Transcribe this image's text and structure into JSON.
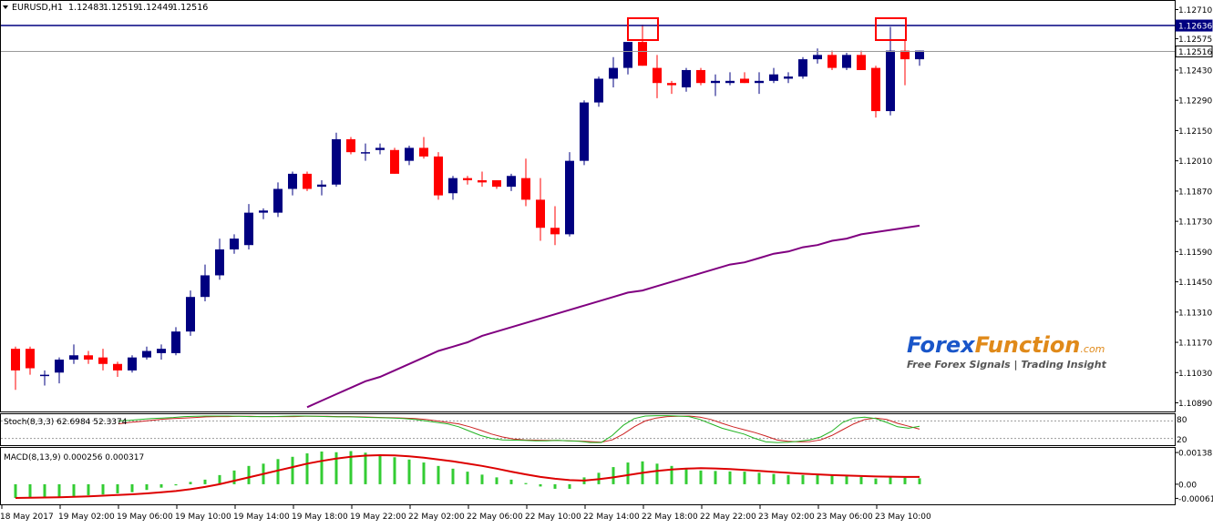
{
  "chart_data": {
    "type": "candlestick",
    "symbol_title": "EURUSD,H1",
    "ohlc_header": [
      "1.12483",
      "1.12519",
      "1.12449",
      "1.12516"
    ],
    "price_axis": {
      "ylim": [
        1.1085,
        1.1275
      ],
      "ticks": [
        "1.12710",
        "1.12575",
        "1.12430",
        "1.12290",
        "1.12150",
        "1.12010",
        "1.11870",
        "1.11730",
        "1.11590",
        "1.11450",
        "1.11310",
        "1.11170",
        "1.11030",
        "1.10890"
      ]
    },
    "horizontal_lines": [
      {
        "value": 1.12636,
        "label": "1.12636",
        "color": "#000080"
      },
      {
        "value": 1.12516,
        "label": "1.12516",
        "color": "#9a9a9a"
      }
    ],
    "candles": [
      [
        1.1114,
        1.1115,
        1.1095,
        1.1104
      ],
      [
        1.1114,
        1.1115,
        1.1102,
        1.1105
      ],
      [
        1.1102,
        1.1104,
        1.1097,
        1.1102
      ],
      [
        1.1103,
        1.111,
        1.1098,
        1.1109
      ],
      [
        1.1109,
        1.1116,
        1.1107,
        1.1111
      ],
      [
        1.1111,
        1.1113,
        1.1107,
        1.1109
      ],
      [
        1.111,
        1.1114,
        1.1104,
        1.1107
      ],
      [
        1.1107,
        1.1108,
        1.1101,
        1.1104
      ],
      [
        1.1104,
        1.1111,
        1.1103,
        1.111
      ],
      [
        1.111,
        1.1115,
        1.1109,
        1.1113
      ],
      [
        1.1112,
        1.1116,
        1.1109,
        1.1114
      ],
      [
        1.1112,
        1.1124,
        1.1111,
        1.1122
      ],
      [
        1.1122,
        1.1141,
        1.112,
        1.1138
      ],
      [
        1.1138,
        1.1153,
        1.1136,
        1.1148
      ],
      [
        1.1148,
        1.1165,
        1.1146,
        1.116
      ],
      [
        1.116,
        1.1167,
        1.1158,
        1.1165
      ],
      [
        1.1162,
        1.1181,
        1.116,
        1.1177
      ],
      [
        1.1177,
        1.1179,
        1.1174,
        1.1178
      ],
      [
        1.1177,
        1.1191,
        1.1175,
        1.1188
      ],
      [
        1.1188,
        1.1196,
        1.1185,
        1.1195
      ],
      [
        1.1195,
        1.1196,
        1.1187,
        1.1188
      ],
      [
        1.1189,
        1.1192,
        1.1185,
        1.119
      ],
      [
        1.119,
        1.1214,
        1.1189,
        1.1211
      ],
      [
        1.1211,
        1.1212,
        1.1204,
        1.1205
      ],
      [
        1.1205,
        1.1209,
        1.1201,
        1.1205
      ],
      [
        1.1206,
        1.1209,
        1.1204,
        1.1207
      ],
      [
        1.1206,
        1.1207,
        1.1195,
        1.1195
      ],
      [
        1.1201,
        1.1208,
        1.1199,
        1.1207
      ],
      [
        1.1207,
        1.1212,
        1.1202,
        1.1203
      ],
      [
        1.1203,
        1.1205,
        1.1183,
        1.1185
      ],
      [
        1.1186,
        1.1194,
        1.1183,
        1.1193
      ],
      [
        1.1193,
        1.1194,
        1.119,
        1.1192
      ],
      [
        1.1192,
        1.1196,
        1.1189,
        1.1191
      ],
      [
        1.1192,
        1.1192,
        1.1188,
        1.1189
      ],
      [
        1.1189,
        1.1195,
        1.1187,
        1.1194
      ],
      [
        1.1193,
        1.1202,
        1.118,
        1.1183
      ],
      [
        1.1183,
        1.1193,
        1.1164,
        1.117
      ],
      [
        1.117,
        1.118,
        1.1162,
        1.1167
      ],
      [
        1.1167,
        1.1205,
        1.1166,
        1.1201
      ],
      [
        1.1201,
        1.1229,
        1.1199,
        1.1228
      ],
      [
        1.1228,
        1.124,
        1.1226,
        1.1239
      ],
      [
        1.1239,
        1.1249,
        1.1235,
        1.1244
      ],
      [
        1.1244,
        1.1256,
        1.1241,
        1.1256
      ],
      [
        1.1256,
        1.1264,
        1.1245,
        1.1245
      ],
      [
        1.1244,
        1.125,
        1.123,
        1.1237
      ],
      [
        1.1237,
        1.1238,
        1.1232,
        1.1236
      ],
      [
        1.1235,
        1.1244,
        1.1233,
        1.1243
      ],
      [
        1.1243,
        1.1244,
        1.1236,
        1.1237
      ],
      [
        1.1237,
        1.1241,
        1.1231,
        1.1238
      ],
      [
        1.1237,
        1.1242,
        1.1236,
        1.1238
      ],
      [
        1.1239,
        1.1242,
        1.1237,
        1.1237
      ],
      [
        1.1237,
        1.1242,
        1.1232,
        1.1238
      ],
      [
        1.1238,
        1.1244,
        1.1237,
        1.1241
      ],
      [
        1.1239,
        1.1242,
        1.1237,
        1.124
      ],
      [
        1.124,
        1.1249,
        1.1239,
        1.1248
      ],
      [
        1.1248,
        1.1253,
        1.1246,
        1.125
      ],
      [
        1.125,
        1.1252,
        1.1243,
        1.1244
      ],
      [
        1.1244,
        1.1251,
        1.1243,
        1.125
      ],
      [
        1.125,
        1.1252,
        1.1243,
        1.1243
      ],
      [
        1.1244,
        1.1245,
        1.1221,
        1.1224
      ],
      [
        1.1224,
        1.1263,
        1.1222,
        1.1252
      ],
      [
        1.1252,
        1.1257,
        1.1236,
        1.1248
      ],
      [
        1.1248,
        1.1252,
        1.1245,
        1.1252
      ]
    ],
    "moving_average": [
      1.1087,
      1.109,
      1.1093,
      1.1096,
      1.1099,
      1.1101,
      1.1104,
      1.1107,
      1.111,
      1.1113,
      1.1115,
      1.1117,
      1.112,
      1.1122,
      1.1124,
      1.1126,
      1.1128,
      1.113,
      1.1132,
      1.1134,
      1.1136,
      1.1138,
      1.114,
      1.1141,
      1.1143,
      1.1145,
      1.1147,
      1.1149,
      1.1151,
      1.1153,
      1.1154,
      1.1156,
      1.1158,
      1.1159,
      1.1161,
      1.1162,
      1.1164,
      1.1165,
      1.1167,
      1.1168,
      1.1169,
      1.117,
      1.1171
    ],
    "highlight_candles": [
      43,
      60
    ],
    "stochastic": {
      "label": "Stoch(8,3,3) 62.6984 52.3374",
      "levels": [
        "80",
        "20"
      ],
      "main": [
        80,
        82,
        85,
        88,
        90,
        92,
        95,
        96,
        97,
        97,
        97,
        96,
        95,
        95,
        95,
        96,
        97,
        97,
        96,
        95,
        94,
        94,
        93,
        92,
        91,
        90,
        88,
        85,
        80,
        75,
        70,
        60,
        45,
        30,
        20,
        15,
        14,
        13,
        12,
        12,
        13,
        12,
        10,
        6,
        6,
        30,
        65,
        88,
        97,
        98,
        98,
        97,
        95,
        85,
        70,
        55,
        45,
        35,
        20,
        8,
        6,
        7,
        10,
        15,
        25,
        45,
        75,
        90,
        93,
        88,
        75,
        60,
        55,
        62
      ],
      "signal": [
        70,
        75,
        78,
        82,
        86,
        88,
        90,
        92,
        94,
        95,
        95,
        96,
        96,
        95,
        95,
        95,
        95,
        96,
        96,
        96,
        95,
        95,
        94,
        93,
        92,
        91,
        90,
        88,
        85,
        80,
        75,
        70,
        60,
        48,
        35,
        25,
        18,
        15,
        14,
        13,
        13,
        12,
        11,
        9,
        7,
        15,
        35,
        60,
        80,
        90,
        95,
        96,
        97,
        93,
        85,
        72,
        60,
        50,
        40,
        28,
        15,
        10,
        8,
        9,
        15,
        30,
        50,
        70,
        85,
        90,
        85,
        72,
        62,
        52
      ]
    },
    "macd": {
      "label": "MACD(8,13,9) 0.000256 0.000317",
      "ticks": [
        "0.001387",
        "0.00",
        "-0.000618"
      ],
      "ylim": [
        -0.00088,
        0.00155
      ],
      "histogram": [
        -0.0006,
        -0.0006,
        -0.00058,
        -0.00055,
        -0.00052,
        -0.00048,
        -0.00045,
        -0.0004,
        -0.00035,
        -0.00025,
        -0.00015,
        -5e-05,
        0.0001,
        0.0002,
        0.0004,
        0.0006,
        0.0008,
        0.0009,
        0.0011,
        0.0012,
        0.00135,
        0.00143,
        0.0014,
        0.00145,
        0.00138,
        0.00128,
        0.00118,
        0.00108,
        0.00095,
        0.0008,
        0.00068,
        0.00055,
        0.00042,
        0.0003,
        0.0002,
        5e-05,
        -0.0001,
        -0.0002,
        -0.0002,
        0.0003,
        0.0005,
        0.00075,
        0.00095,
        0.001,
        0.0009,
        0.0008,
        0.0007,
        0.0006,
        0.00058,
        0.00056,
        0.00055,
        0.0005,
        0.00045,
        0.0004,
        0.0004,
        0.0004,
        0.00038,
        0.00035,
        0.00032,
        0.00025,
        0.0003,
        0.00028,
        0.00026
      ],
      "signal": [
        -0.0006,
        -0.00059,
        -0.00058,
        -0.00057,
        -0.00055,
        -0.00053,
        -0.0005,
        -0.00047,
        -0.00044,
        -0.0004,
        -0.00035,
        -0.0003,
        -0.00022,
        -0.00012,
        0.0,
        0.00015,
        0.0003,
        0.00045,
        0.0006,
        0.00075,
        0.0009,
        0.00102,
        0.00112,
        0.0012,
        0.00125,
        0.00127,
        0.00126,
        0.00122,
        0.00116,
        0.00108,
        0.001,
        0.0009,
        0.0008,
        0.00068,
        0.00055,
        0.00043,
        0.00032,
        0.00024,
        0.00018,
        0.00016,
        0.00022,
        0.0003,
        0.0004,
        0.0005,
        0.00058,
        0.00064,
        0.00068,
        0.0007,
        0.00069,
        0.00066,
        0.00062,
        0.00058,
        0.00054,
        0.0005,
        0.00046,
        0.00043,
        0.0004,
        0.00038,
        0.00036,
        0.00034,
        0.00033,
        0.00032,
        0.00032
      ]
    },
    "time_labels": [
      "18 May 2017",
      "19 May 02:00",
      "19 May 06:00",
      "19 May 10:00",
      "19 May 14:00",
      "19 May 18:00",
      "19 May 22:00",
      "22 May 02:00",
      "22 May 06:00",
      "22 May 10:00",
      "22 May 14:00",
      "22 May 18:00",
      "22 May 22:00",
      "23 May 02:00",
      "23 May 06:00",
      "23 May 10:00"
    ],
    "watermark": {
      "brand_part1": "Forex",
      "brand_part2": "Function",
      "domain_suffix": ".com",
      "tagline": "Free Forex Signals | Trading Insight"
    },
    "colors": {
      "bull": "#000080",
      "bear": "#ff0000",
      "ma": "#800080",
      "resistance": "#000080",
      "highlight_box": "#ff0000",
      "stoch_main": "#22b322",
      "stoch_signal": "#cc2222",
      "macd_hist": "#33cc33",
      "macd_signal": "#dd0000"
    }
  }
}
